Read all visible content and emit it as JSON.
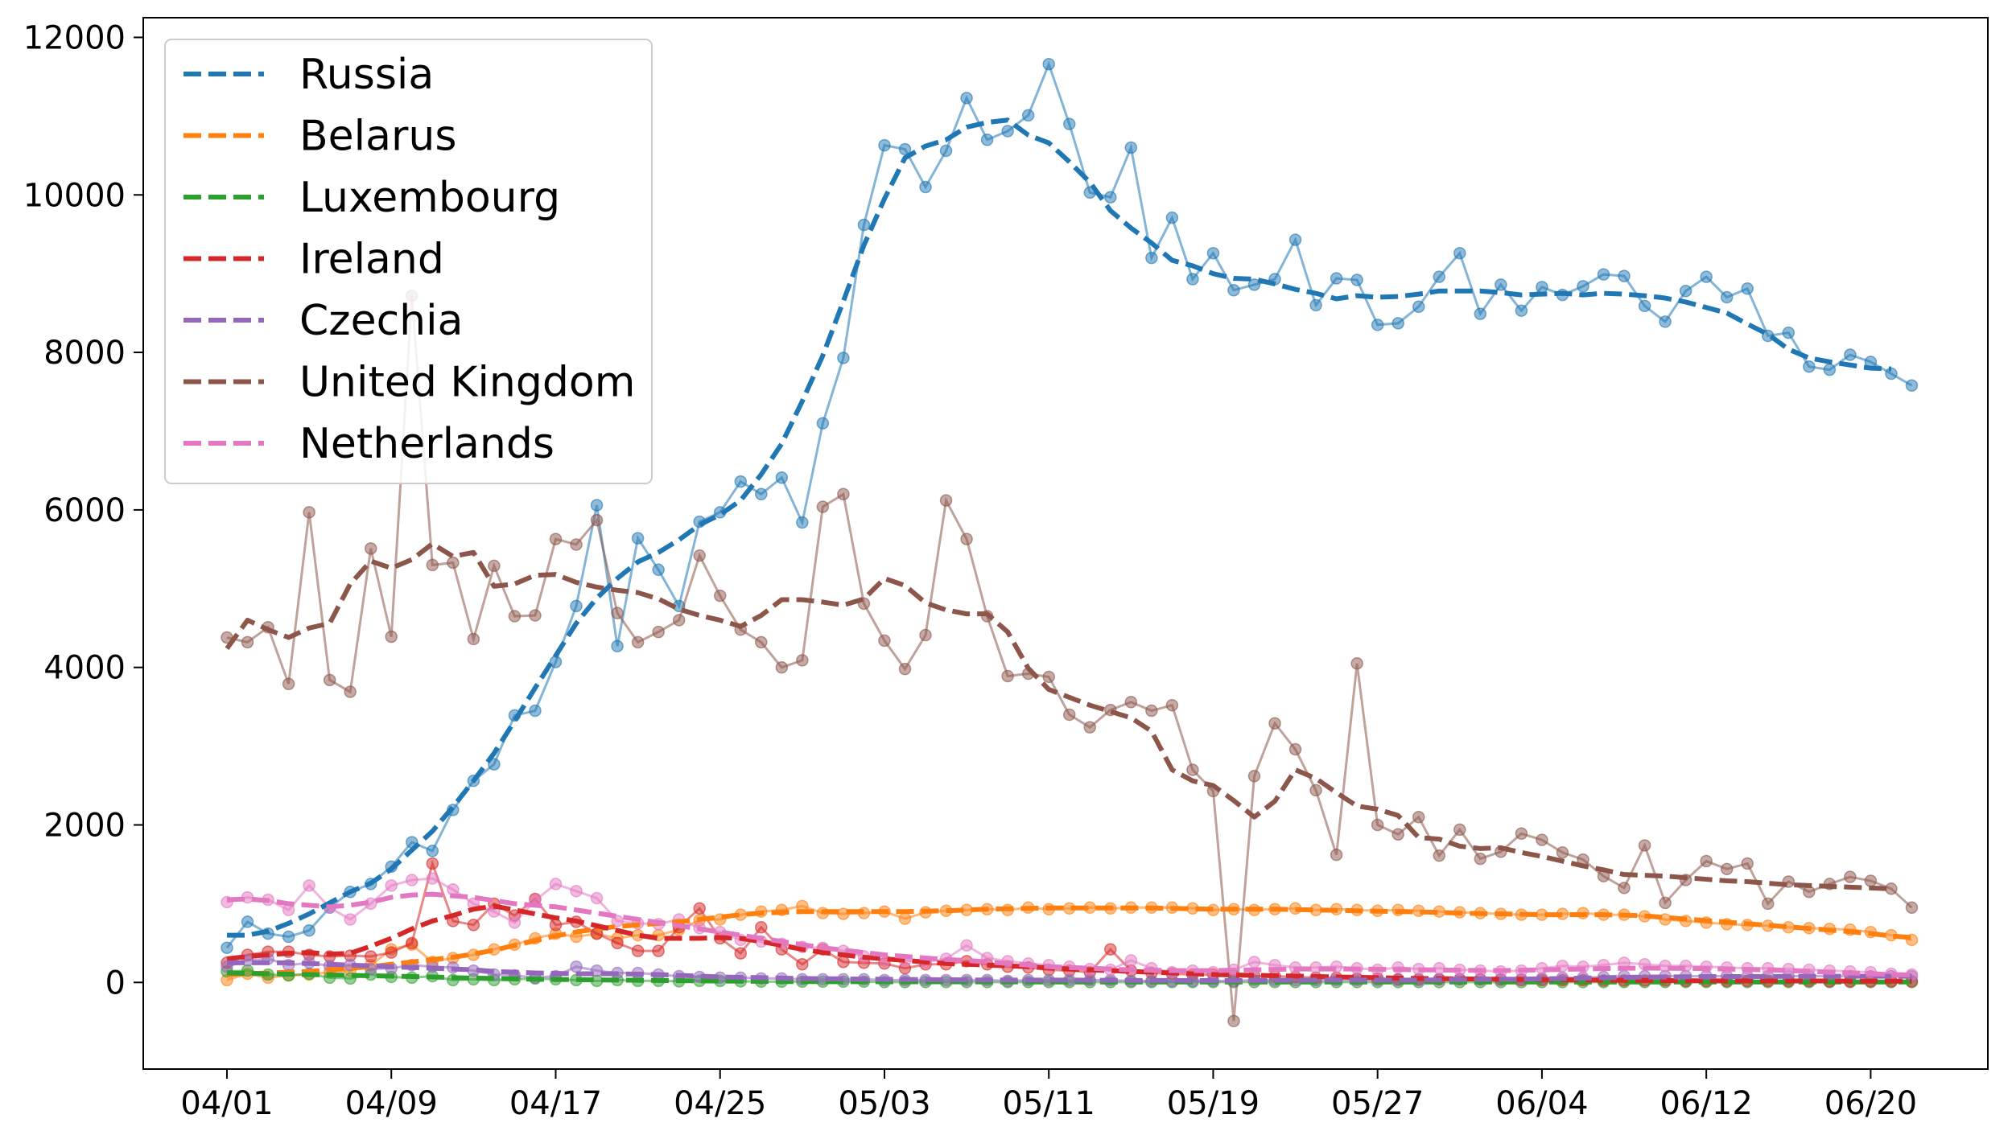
{
  "chart_data": {
    "type": "line",
    "title": "",
    "xlabel": "",
    "ylabel": "",
    "ylim": [
      -1100,
      12250
    ],
    "yticks": [
      0,
      2000,
      4000,
      6000,
      8000,
      10000,
      12000
    ],
    "xticks": [
      {
        "day": 0,
        "label": "04/01"
      },
      {
        "day": 8,
        "label": "04/09"
      },
      {
        "day": 16,
        "label": "04/17"
      },
      {
        "day": 24,
        "label": "04/25"
      },
      {
        "day": 32,
        "label": "05/03"
      },
      {
        "day": 40,
        "label": "05/11"
      },
      {
        "day": 48,
        "label": "05/19"
      },
      {
        "day": 56,
        "label": "05/27"
      },
      {
        "day": 64,
        "label": "06/04"
      },
      {
        "day": 72,
        "label": "06/12"
      },
      {
        "day": 80,
        "label": "06/20"
      }
    ],
    "grid": false,
    "legend": "top-left",
    "series": [
      {
        "name": "Russia",
        "color": "#1f77b4",
        "raw": [
          440,
          770,
          620,
          580,
          660,
          950,
          1150,
          1250,
          1470,
          1780,
          1670,
          2190,
          2560,
          2770,
          3390,
          3450,
          4070,
          4780,
          6060,
          4270,
          5640,
          5240,
          4780,
          5850,
          5970,
          6360,
          6200,
          6410,
          5840,
          7100,
          7930,
          9620,
          10630,
          10580,
          10100,
          10560,
          11230,
          10700,
          10810,
          11010,
          11660,
          10900,
          10030,
          9970,
          10600,
          9200,
          9710,
          8930,
          9260,
          8790,
          8860,
          8930,
          9430,
          8600,
          8940,
          8920,
          8350,
          8370,
          8580,
          8960,
          9260,
          8490,
          8860,
          8530,
          8830,
          8730,
          8840,
          8990,
          8970,
          8590,
          8390,
          8780,
          8960,
          8700,
          8810,
          8210,
          8250,
          7820,
          7780,
          7970,
          7880,
          7730,
          7580
        ],
        "trend": [
          600,
          600,
          650,
          750,
          870,
          1010,
          1150,
          1260,
          1440,
          1680,
          1920,
          2230,
          2560,
          2910,
          3320,
          3740,
          4150,
          4560,
          4880,
          5130,
          5340,
          5460,
          5620,
          5810,
          5940,
          6120,
          6450,
          6840,
          7380,
          7960,
          8650,
          9360,
          9950,
          10470,
          10620,
          10700,
          10860,
          10920,
          10950,
          10760,
          10660,
          10420,
          10160,
          9800,
          9580,
          9390,
          9170,
          9100,
          9000,
          8940,
          8930,
          8870,
          8800,
          8750,
          8680,
          8720,
          8700,
          8710,
          8740,
          8780,
          8780,
          8780,
          8760,
          8730,
          8740,
          8750,
          8730,
          8750,
          8740,
          8720,
          8690,
          8640,
          8570,
          8500,
          8360,
          8230,
          8040,
          7930,
          7880,
          7840,
          7800,
          7790
        ],
        "raw_start": 0,
        "trend_start": 0
      },
      {
        "name": "Belarus",
        "color": "#ff7f0e",
        "raw": [
          30,
          110,
          60,
          90,
          100,
          130,
          150,
          220,
          420,
          480,
          260,
          310,
          350,
          420,
          480,
          560,
          620,
          580,
          620,
          560,
          600,
          600,
          670,
          790,
          800,
          860,
          900,
          920,
          970,
          880,
          870,
          880,
          900,
          810,
          890,
          910,
          920,
          930,
          920,
          950,
          930,
          940,
          950,
          940,
          950,
          950,
          950,
          940,
          920,
          930,
          920,
          930,
          940,
          920,
          930,
          920,
          910,
          920,
          910,
          900,
          890,
          880,
          870,
          860,
          860,
          870,
          880,
          860,
          860,
          840,
          800,
          780,
          760,
          740,
          730,
          720,
          700,
          690,
          680,
          670,
          640,
          600,
          540
        ],
        "trend": [
          100,
          110,
          120,
          130,
          140,
          160,
          180,
          200,
          230,
          260,
          290,
          320,
          360,
          410,
          470,
          530,
          590,
          640,
          680,
          710,
          730,
          750,
          770,
          800,
          830,
          860,
          880,
          890,
          900,
          900,
          900,
          900,
          900,
          900,
          905,
          910,
          920,
          930,
          935,
          940,
          945,
          945,
          945,
          945,
          945,
          945,
          940,
          935,
          930,
          930,
          930,
          930,
          925,
          920,
          915,
          910,
          905,
          900,
          895,
          890,
          880,
          875,
          870,
          865,
          860,
          860,
          860,
          860,
          855,
          845,
          825,
          805,
          785,
          765,
          745,
          725,
          705,
          685,
          665,
          645,
          620,
          590,
          570
        ],
        "raw_start": 0,
        "trend_start": 0
      },
      {
        "name": "Luxembourg",
        "color": "#2ca02c",
        "raw": [
          140,
          150,
          100,
          90,
          110,
          60,
          50,
          100,
          70,
          60,
          80,
          30,
          40,
          30,
          40,
          50,
          40,
          30,
          20,
          30,
          20,
          20,
          15,
          20,
          20,
          15,
          10,
          10,
          10,
          10,
          10,
          10,
          5,
          5,
          5,
          5,
          5,
          5,
          5,
          5,
          5,
          5,
          5,
          5,
          5,
          5,
          5,
          5,
          5,
          5,
          5,
          5,
          5,
          5,
          5,
          5,
          5,
          5,
          5,
          5,
          5,
          5,
          5,
          5,
          5,
          5,
          5,
          5,
          5,
          5,
          5,
          5,
          5,
          5,
          5,
          5,
          5,
          5,
          5,
          5,
          5,
          5,
          5
        ],
        "trend": [
          120,
          115,
          110,
          105,
          100,
          95,
          90,
          85,
          80,
          75,
          70,
          60,
          55,
          50,
          45,
          40,
          38,
          35,
          32,
          30,
          27,
          25,
          22,
          20,
          18,
          16,
          14,
          12,
          11,
          10,
          10,
          9,
          9,
          8,
          8,
          8,
          7,
          7,
          7,
          7,
          6,
          6,
          6,
          6,
          6,
          6,
          6,
          6,
          6,
          6,
          6,
          6,
          6,
          6,
          6,
          6,
          6,
          6,
          6,
          6,
          6,
          6,
          6,
          6,
          6,
          6,
          6,
          6,
          6,
          6,
          6,
          6,
          6,
          6,
          6,
          6,
          6,
          6,
          6,
          6,
          6,
          6,
          6
        ],
        "raw_start": 0,
        "trend_start": 0
      },
      {
        "name": "Ireland",
        "color": "#d62728",
        "raw": [
          250,
          350,
          390,
          390,
          350,
          330,
          340,
          330,
          380,
          500,
          1510,
          780,
          730,
          1000,
          850,
          1060,
          730,
          770,
          620,
          500,
          400,
          400,
          700,
          940,
          560,
          370,
          700,
          420,
          230,
          420,
          260,
          250,
          240,
          180,
          230,
          230,
          270,
          230,
          200,
          190,
          160,
          150,
          130,
          420,
          150,
          120,
          110,
          100,
          100,
          90,
          80,
          80,
          70,
          60,
          60,
          50,
          50,
          40,
          40,
          40,
          40,
          40,
          35,
          30,
          30,
          30,
          30,
          25,
          25,
          25,
          25,
          20,
          20,
          20,
          20,
          20,
          20,
          20,
          15,
          15,
          15,
          15,
          15
        ],
        "trend": [
          300,
          330,
          350,
          370,
          380,
          360,
          370,
          460,
          560,
          680,
          780,
          850,
          930,
          970,
          920,
          870,
          820,
          780,
          720,
          660,
          600,
          560,
          560,
          560,
          570,
          560,
          520,
          470,
          420,
          380,
          350,
          320,
          300,
          280,
          260,
          240,
          230,
          220,
          210,
          200,
          185,
          170,
          160,
          150,
          140,
          130,
          120,
          110,
          100,
          95,
          90,
          85,
          80,
          75,
          70,
          65,
          60,
          55,
          50,
          48,
          45,
          43,
          40,
          38,
          36,
          34,
          32,
          30,
          28,
          26,
          24,
          22,
          20,
          20,
          20,
          18,
          18,
          18,
          18,
          16,
          16,
          16,
          16
        ],
        "raw_start": 0,
        "trend_start": 0
      },
      {
        "name": "Czechia",
        "color": "#9467bd",
        "raw": [
          200,
          280,
          300,
          220,
          250,
          210,
          220,
          170,
          180,
          220,
          200,
          190,
          150,
          100,
          90,
          60,
          80,
          200,
          150,
          120,
          120,
          100,
          80,
          70,
          60,
          60,
          50,
          50,
          40,
          40,
          40,
          40,
          30,
          30,
          30,
          30,
          30,
          30,
          20,
          30,
          30,
          30,
          30,
          30,
          20,
          20,
          20,
          20,
          20,
          20,
          30,
          30,
          30,
          30,
          30,
          30,
          30,
          30,
          30,
          40,
          40,
          40,
          40,
          40,
          50,
          60,
          60,
          70,
          80,
          80,
          80,
          80,
          80,
          80,
          80,
          80,
          80,
          80,
          80,
          80,
          80,
          80,
          80
        ],
        "trend": [
          250,
          250,
          250,
          250,
          240,
          230,
          220,
          210,
          200,
          190,
          180,
          170,
          160,
          140,
          130,
          120,
          115,
          110,
          110,
          110,
          105,
          100,
          90,
          80,
          70,
          65,
          60,
          55,
          50,
          48,
          45,
          42,
          40,
          38,
          36,
          34,
          32,
          30,
          30,
          30,
          30,
          30,
          28,
          28,
          26,
          25,
          24,
          23,
          23,
          23,
          25,
          27,
          28,
          30,
          30,
          30,
          30,
          30,
          30,
          32,
          35,
          38,
          40,
          42,
          45,
          50,
          55,
          60,
          65,
          68,
          70,
          72,
          74,
          75,
          75,
          76,
          77,
          77,
          78,
          78,
          78,
          78,
          78
        ],
        "raw_start": 0,
        "trend_start": 0
      },
      {
        "name": "United Kingdom",
        "color": "#8c564b",
        "raw": [
          4380,
          4320,
          4510,
          3790,
          5970,
          3840,
          3690,
          5510,
          4390,
          8720,
          5300,
          5330,
          4360,
          5290,
          4650,
          4660,
          5630,
          5560,
          5870,
          4690,
          4320,
          4450,
          4600,
          5420,
          4910,
          4480,
          4320,
          4000,
          4090,
          6040,
          6200,
          4810,
          4340,
          3980,
          4410,
          6120,
          5630,
          4650,
          3890,
          3920,
          3880,
          3400,
          3240,
          3460,
          3560,
          3450,
          3520,
          2700,
          2430,
          -490,
          2620,
          3290,
          2960,
          2440,
          1620,
          4050,
          2000,
          1880,
          2100,
          1610,
          1940,
          1570,
          1660,
          1890,
          1810,
          1650,
          1560,
          1350,
          1200,
          1740,
          1010,
          1300,
          1540,
          1440,
          1510,
          1000,
          1280,
          1150,
          1250,
          1340,
          1290,
          1190,
          950
        ],
        "trend": [
          4240,
          4600,
          4480,
          4380,
          4500,
          4560,
          5060,
          5350,
          5260,
          5370,
          5570,
          5410,
          5460,
          5030,
          5060,
          5170,
          5180,
          5080,
          5020,
          4980,
          4950,
          4870,
          4740,
          4660,
          4600,
          4520,
          4660,
          4860,
          4860,
          4830,
          4790,
          4870,
          5130,
          5040,
          4820,
          4730,
          4680,
          4680,
          4450,
          3990,
          3720,
          3620,
          3520,
          3440,
          3360,
          3190,
          2700,
          2560,
          2500,
          2310,
          2100,
          2300,
          2700,
          2590,
          2410,
          2240,
          2200,
          2120,
          1840,
          1820,
          1730,
          1700,
          1710,
          1650,
          1600,
          1540,
          1480,
          1430,
          1370,
          1360,
          1350,
          1330,
          1310,
          1290,
          1280,
          1260,
          1240,
          1230,
          1220,
          1210,
          1200,
          1190
        ],
        "raw_start": 0,
        "trend_start": 0
      },
      {
        "name": "Netherlands",
        "color": "#e377c2",
        "raw": [
          1020,
          1080,
          1050,
          920,
          1230,
          950,
          800,
          1000,
          1230,
          1300,
          1320,
          1180,
          1000,
          900,
          760,
          1040,
          1250,
          1160,
          1070,
          780,
          750,
          740,
          800,
          690,
          640,
          540,
          520,
          490,
          450,
          440,
          400,
          330,
          280,
          280,
          260,
          300,
          470,
          310,
          270,
          240,
          220,
          200,
          170,
          160,
          280,
          180,
          130,
          150,
          130,
          160,
          260,
          220,
          190,
          190,
          200,
          180,
          160,
          190,
          170,
          180,
          160,
          150,
          140,
          150,
          180,
          210,
          200,
          220,
          250,
          230,
          210,
          210,
          200,
          190,
          180,
          180,
          170,
          160,
          150,
          140,
          130,
          110,
          100
        ],
        "trend": [
          1050,
          1060,
          1040,
          1000,
          980,
          960,
          980,
          1020,
          1080,
          1110,
          1120,
          1100,
          1080,
          1040,
          1000,
          980,
          960,
          920,
          880,
          840,
          800,
          760,
          720,
          680,
          640,
          600,
          560,
          520,
          480,
          440,
          410,
          380,
          350,
          330,
          310,
          290,
          280,
          260,
          240,
          220,
          200,
          190,
          180,
          170,
          160,
          155,
          150,
          150,
          150,
          155,
          160,
          165,
          170,
          170,
          170,
          170,
          168,
          165,
          160,
          158,
          155,
          152,
          150,
          155,
          160,
          165,
          170,
          175,
          180,
          180,
          180,
          178,
          175,
          170,
          165,
          160,
          150,
          140,
          130,
          120,
          110,
          100,
          95
        ],
        "raw_start": 0,
        "trend_start": 0
      }
    ]
  }
}
